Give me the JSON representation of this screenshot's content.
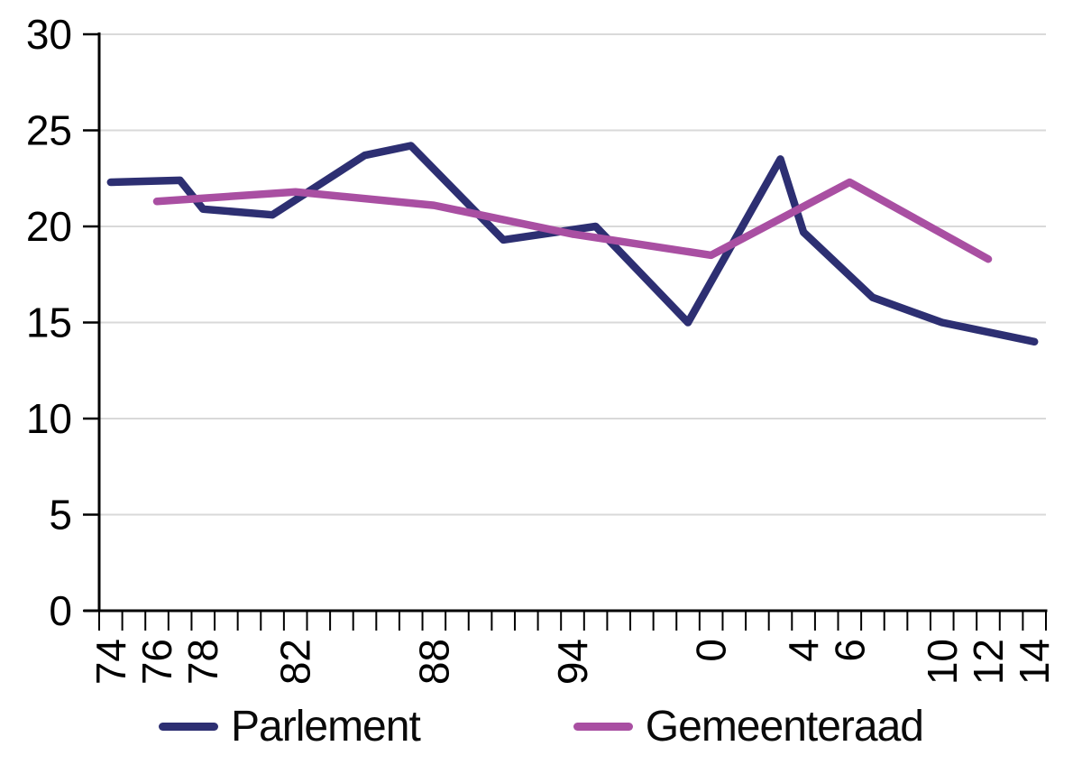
{
  "chart_data": {
    "type": "line",
    "title": "",
    "x_axis": {
      "unit": "year",
      "range_years": [
        1973.5,
        2014.5
      ],
      "tick_every_years": 1,
      "tick_labels": [
        {
          "year": 1974,
          "label": "74"
        },
        {
          "year": 1976,
          "label": "76"
        },
        {
          "year": 1978,
          "label": "78"
        },
        {
          "year": 1982,
          "label": "82"
        },
        {
          "year": 1988,
          "label": "88"
        },
        {
          "year": 1994,
          "label": "94"
        },
        {
          "year": 2000,
          "label": "0"
        },
        {
          "year": 2004,
          "label": "4"
        },
        {
          "year": 2006,
          "label": "6"
        },
        {
          "year": 2010,
          "label": "10"
        },
        {
          "year": 2012,
          "label": "12"
        },
        {
          "year": 2014,
          "label": "14"
        }
      ]
    },
    "y_axis": {
      "min": 0,
      "max": 30,
      "tick_step": 5,
      "tick_labels": [
        "0",
        "5",
        "10",
        "15",
        "20",
        "25",
        "30"
      ]
    },
    "grid": {
      "show": true,
      "color": "#d9d9d9"
    },
    "axis_color": "#000000",
    "legend_position": "bottom",
    "series": [
      {
        "name": "Parlement",
        "color": "#2d2f72",
        "points": [
          [
            1974,
            22.3
          ],
          [
            1977,
            22.4
          ],
          [
            1978,
            20.9
          ],
          [
            1981,
            20.6
          ],
          [
            1985,
            23.7
          ],
          [
            1987,
            24.2
          ],
          [
            1991,
            19.3
          ],
          [
            1995,
            20.0
          ],
          [
            1999,
            15.0
          ],
          [
            2003,
            23.5
          ],
          [
            2004,
            19.7
          ],
          [
            2007,
            16.3
          ],
          [
            2010,
            15.0
          ],
          [
            2014,
            14.0
          ]
        ]
      },
      {
        "name": "Gemeenteraad",
        "color": "#a94fa2",
        "points": [
          [
            1976,
            21.3
          ],
          [
            1982,
            21.8
          ],
          [
            1988,
            21.1
          ],
          [
            1994,
            19.6
          ],
          [
            2000,
            18.5
          ],
          [
            2006,
            22.3
          ],
          [
            2012,
            18.3
          ]
        ]
      }
    ]
  }
}
